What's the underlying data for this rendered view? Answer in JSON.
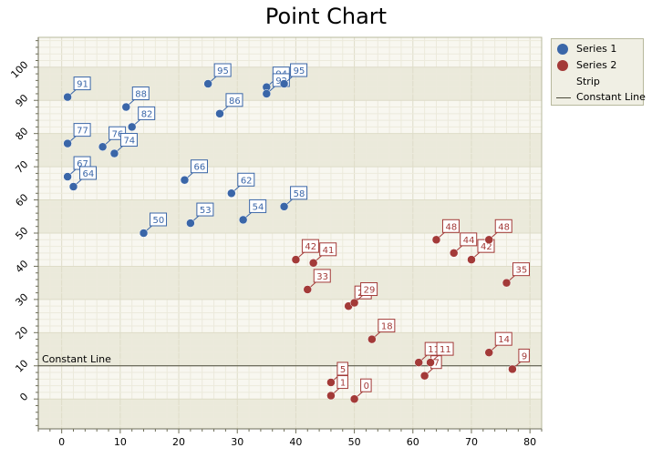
{
  "chart_data": {
    "type": "scatter",
    "title": "Point Chart",
    "xlim": [
      -4,
      82
    ],
    "ylim": [
      -9,
      109
    ],
    "x_ticks": [
      0,
      10,
      20,
      30,
      40,
      50,
      60,
      70,
      80
    ],
    "y_ticks": [
      0,
      10,
      20,
      30,
      40,
      50,
      60,
      70,
      80,
      90,
      100
    ],
    "grid": true,
    "legend_position": "right",
    "strip": {
      "name": "Strip",
      "bands": [
        [
          -10,
          0
        ],
        [
          10,
          20
        ],
        [
          30,
          40
        ],
        [
          50,
          60
        ],
        [
          70,
          80
        ],
        [
          90,
          100
        ]
      ]
    },
    "constant_line": {
      "name": "Constant Line",
      "value": 10,
      "label": "Constant Line"
    },
    "series": [
      {
        "name": "Series 1",
        "color": "#3a66a8",
        "points": [
          {
            "x": 1,
            "y": 91,
            "label": "91"
          },
          {
            "x": 1,
            "y": 77,
            "label": "77"
          },
          {
            "x": 1,
            "y": 67,
            "label": "67"
          },
          {
            "x": 2,
            "y": 64,
            "label": "64"
          },
          {
            "x": 7,
            "y": 76,
            "label": "76"
          },
          {
            "x": 9,
            "y": 74,
            "label": "74"
          },
          {
            "x": 11,
            "y": 88,
            "label": "88"
          },
          {
            "x": 12,
            "y": 82,
            "label": "82"
          },
          {
            "x": 14,
            "y": 50,
            "label": "50"
          },
          {
            "x": 21,
            "y": 66,
            "label": "66"
          },
          {
            "x": 22,
            "y": 53,
            "label": "53"
          },
          {
            "x": 25,
            "y": 95,
            "label": "95"
          },
          {
            "x": 27,
            "y": 86,
            "label": "86"
          },
          {
            "x": 29,
            "y": 62,
            "label": "62"
          },
          {
            "x": 31,
            "y": 54,
            "label": "54"
          },
          {
            "x": 35,
            "y": 94,
            "label": "94"
          },
          {
            "x": 35,
            "y": 92,
            "label": "92"
          },
          {
            "x": 38,
            "y": 95,
            "label": "95"
          },
          {
            "x": 38,
            "y": 58,
            "label": "58"
          }
        ]
      },
      {
        "name": "Series 2",
        "color": "#a33a38",
        "points": [
          {
            "x": 40,
            "y": 42,
            "label": "42"
          },
          {
            "x": 42,
            "y": 33,
            "label": "33"
          },
          {
            "x": 43,
            "y": 41,
            "label": "41"
          },
          {
            "x": 46,
            "y": 5,
            "label": "5"
          },
          {
            "x": 46,
            "y": 1,
            "label": "1"
          },
          {
            "x": 49,
            "y": 28,
            "label": "28"
          },
          {
            "x": 50,
            "y": 29,
            "label": "29"
          },
          {
            "x": 50,
            "y": 0,
            "label": "0"
          },
          {
            "x": 53,
            "y": 18,
            "label": "18"
          },
          {
            "x": 61,
            "y": 11,
            "label": "11"
          },
          {
            "x": 62,
            "y": 7,
            "label": "7"
          },
          {
            "x": 63,
            "y": 11,
            "label": "11"
          },
          {
            "x": 64,
            "y": 48,
            "label": "48"
          },
          {
            "x": 67,
            "y": 44,
            "label": "44"
          },
          {
            "x": 70,
            "y": 42,
            "label": "42"
          },
          {
            "x": 73,
            "y": 48,
            "label": "48"
          },
          {
            "x": 73,
            "y": 14,
            "label": "14"
          },
          {
            "x": 76,
            "y": 35,
            "label": "35"
          },
          {
            "x": 77,
            "y": 9,
            "label": "9"
          }
        ]
      }
    ]
  },
  "legend": {
    "items": [
      {
        "label": "Series 1",
        "icon": "circle-marker",
        "color": "#3a66a8"
      },
      {
        "label": "Series 2",
        "icon": "circle-marker",
        "color": "#a33a38"
      },
      {
        "label": "Strip",
        "icon": "none"
      },
      {
        "label": "Constant Line",
        "icon": "line-marker",
        "color": "#4a4a3a"
      }
    ]
  }
}
